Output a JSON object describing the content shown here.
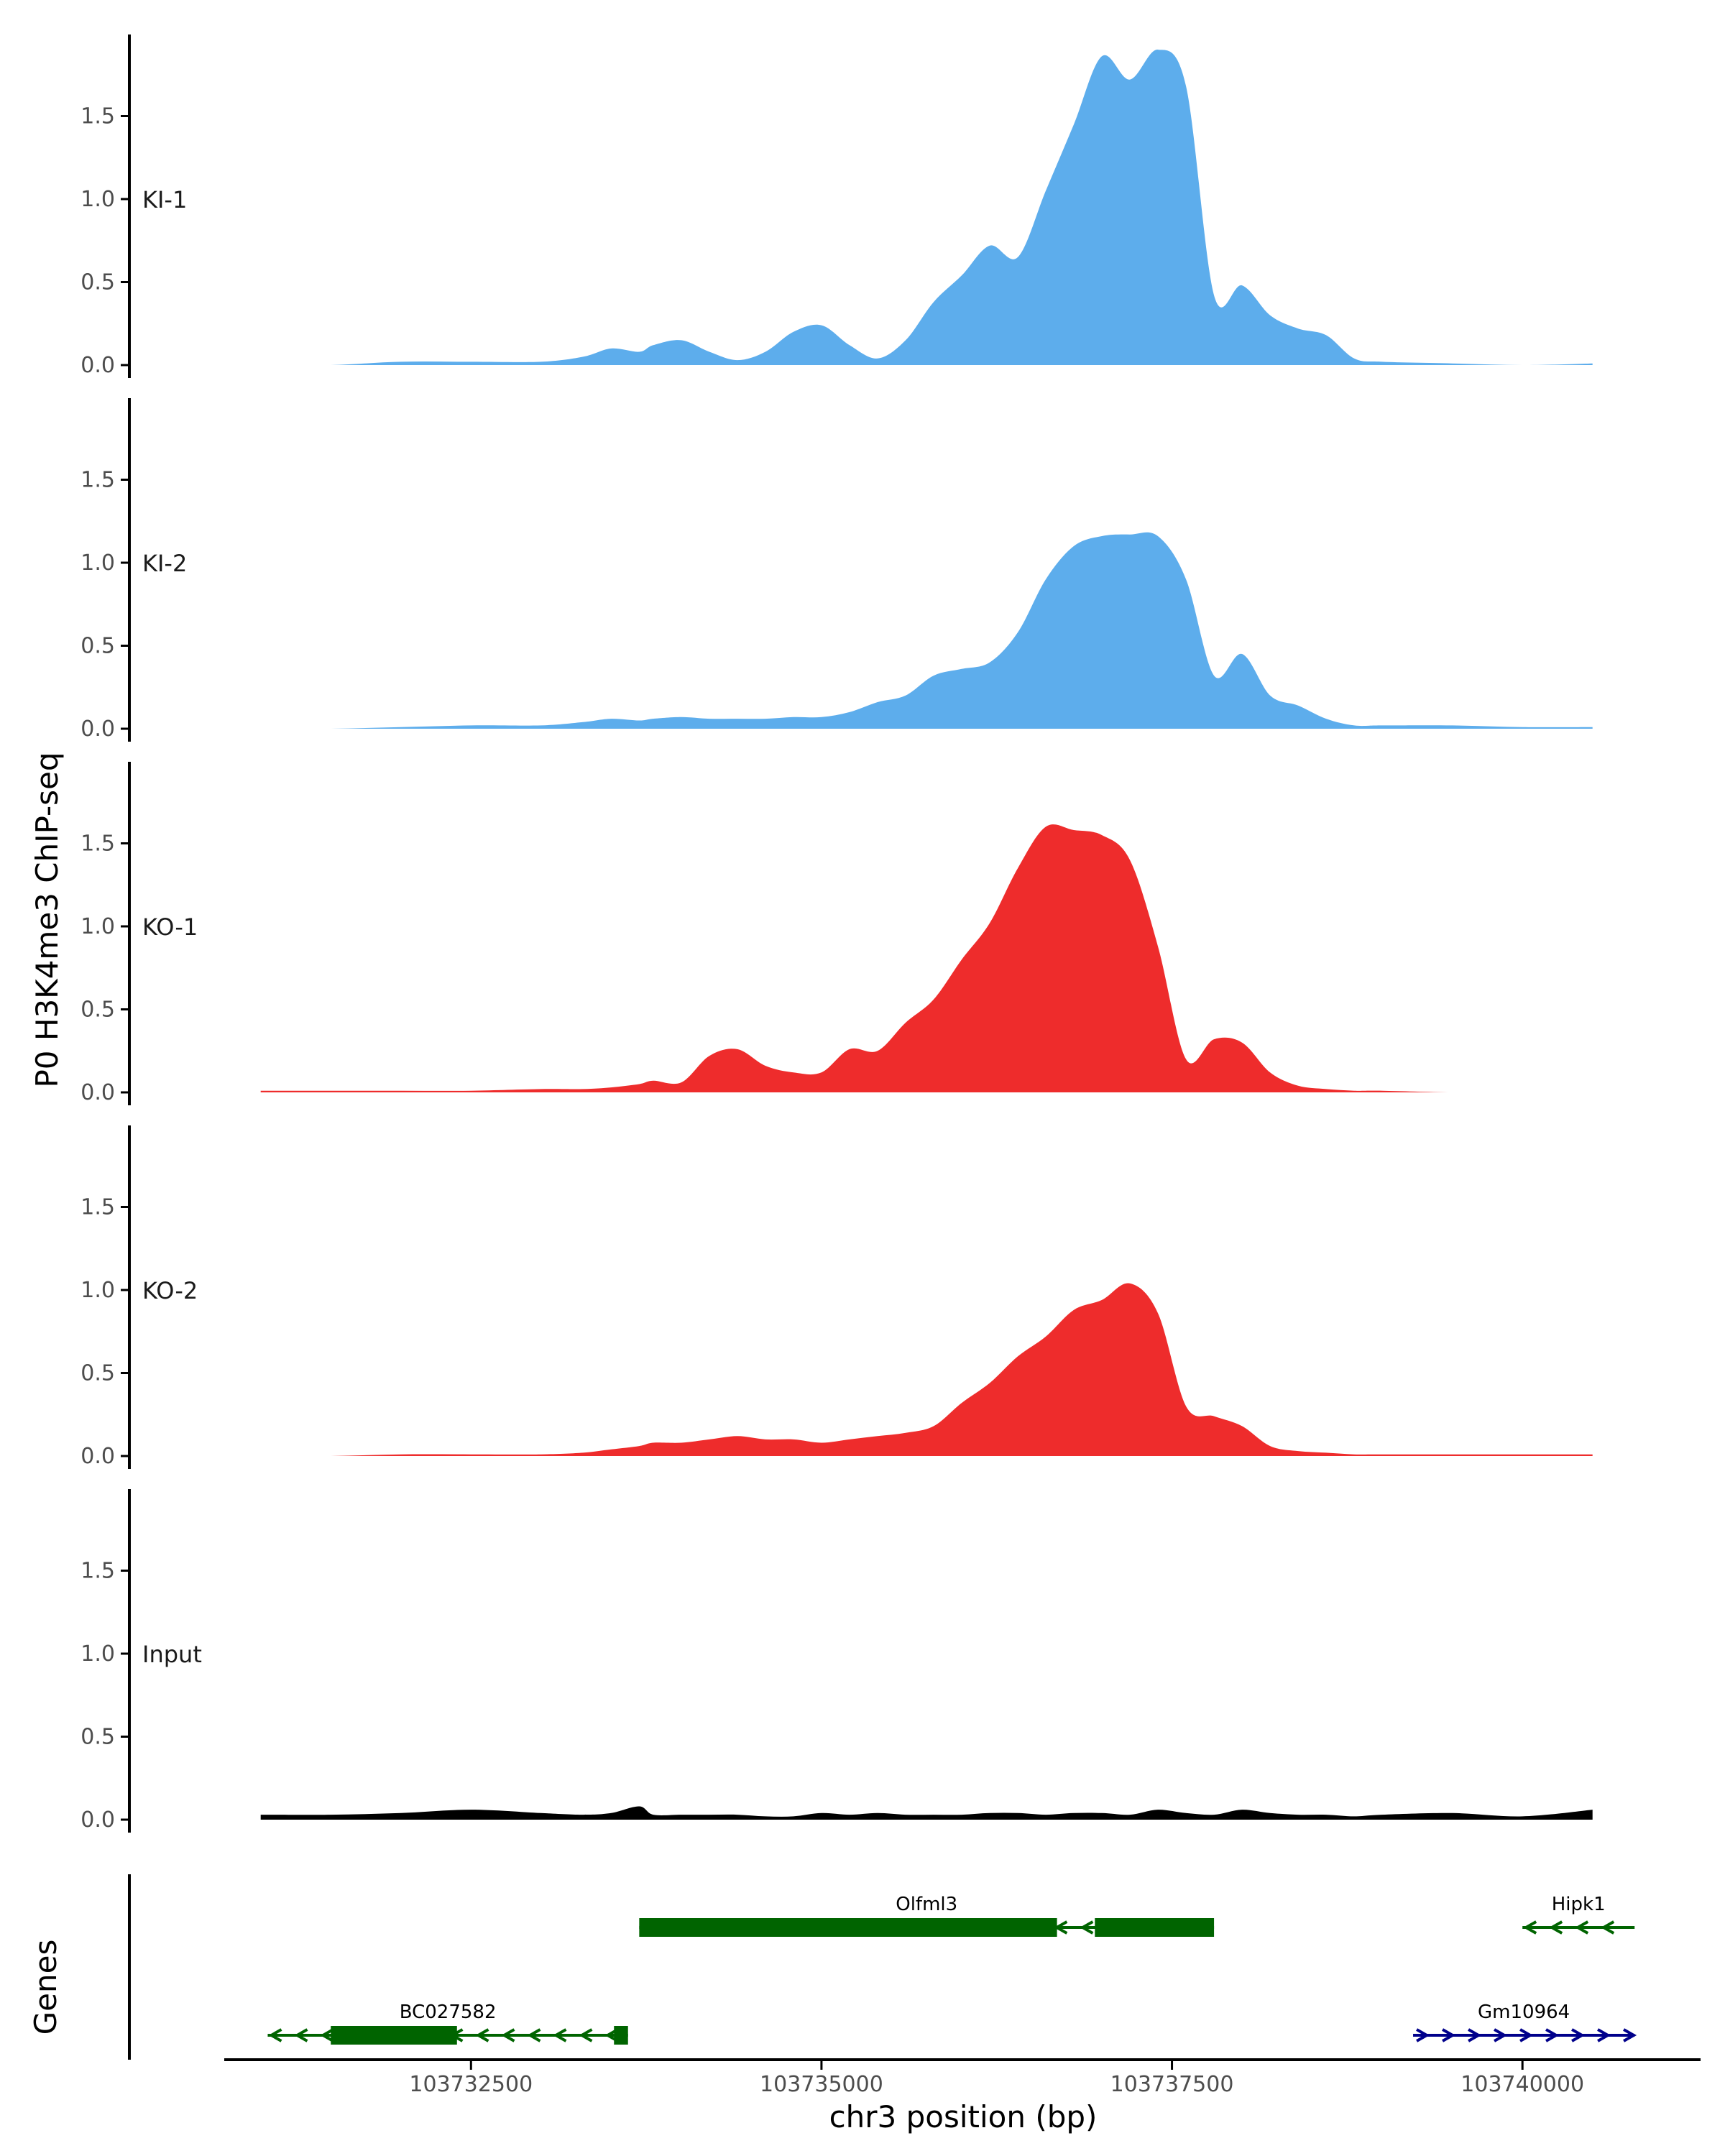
{
  "chart_data": {
    "type": "area",
    "ylabel": "P0 H3K4me3 ChIP-seq",
    "xlabel": "chr3 position (bp)",
    "ylim": [
      0,
      2.0
    ],
    "xlim": [
      103730740,
      103741250
    ],
    "y_ticks": [
      "0.0",
      "0.5",
      "1.0",
      "1.5"
    ],
    "y_tick_values": [
      0,
      0.5,
      1.0,
      1.5
    ],
    "x_ticks": [
      "103732500",
      "103735000",
      "103737500",
      "103740000"
    ],
    "x_tick_values": [
      103732500,
      103735000,
      103737500,
      103740000
    ],
    "colors": {
      "KI": "#5DADEC",
      "KO": "#EE2C2C",
      "Input": "#000000",
      "gene_minus": "#006400",
      "gene_plus": "#00008B",
      "axis": "#000000"
    },
    "track_x": [
      103731000,
      103731500,
      103732000,
      103732500,
      103733000,
      103733300,
      103733500,
      103733700,
      103733800,
      103734000,
      103734200,
      103734400,
      103734600,
      103734800,
      103735000,
      103735200,
      103735400,
      103735600,
      103735800,
      103736000,
      103736200,
      103736400,
      103736600,
      103736800,
      103737000,
      103737200,
      103737400,
      103737600,
      103737800,
      103738000,
      103738200,
      103738400,
      103738600,
      103738800,
      103739000,
      103739500,
      103740000,
      103740500
    ],
    "series": [
      {
        "name": "KI-1",
        "color": "#5DADEC",
        "values": [
          0,
          0,
          0.02,
          0.02,
          0.02,
          0.05,
          0.1,
          0.08,
          0.12,
          0.15,
          0.08,
          0.03,
          0.08,
          0.2,
          0.24,
          0.12,
          0.04,
          0.15,
          0.38,
          0.54,
          0.72,
          0.65,
          1.05,
          1.45,
          1.86,
          1.72,
          1.9,
          1.68,
          0.42,
          0.48,
          0.3,
          0.22,
          0.18,
          0.04,
          0.02,
          0.01,
          0,
          0.01
        ]
      },
      {
        "name": "KI-2",
        "color": "#5DADEC",
        "values": [
          0,
          0,
          0.01,
          0.02,
          0.02,
          0.04,
          0.06,
          0.05,
          0.06,
          0.07,
          0.06,
          0.06,
          0.06,
          0.07,
          0.07,
          0.1,
          0.16,
          0.2,
          0.32,
          0.36,
          0.4,
          0.58,
          0.9,
          1.1,
          1.16,
          1.17,
          1.16,
          0.9,
          0.32,
          0.45,
          0.2,
          0.14,
          0.06,
          0.02,
          0.02,
          0.02,
          0.01,
          0.01
        ]
      },
      {
        "name": "KO-1",
        "color": "#EE2C2C",
        "values": [
          0.01,
          0.01,
          0.01,
          0.01,
          0.02,
          0.02,
          0.03,
          0.05,
          0.07,
          0.06,
          0.22,
          0.26,
          0.16,
          0.12,
          0.12,
          0.26,
          0.25,
          0.42,
          0.56,
          0.8,
          1.02,
          1.35,
          1.6,
          1.58,
          1.55,
          1.4,
          0.88,
          0.2,
          0.32,
          0.3,
          0.12,
          0.04,
          0.02,
          0.01,
          0.01,
          0,
          0,
          0
        ]
      },
      {
        "name": "KO-2",
        "color": "#EE2C2C",
        "values": [
          0,
          0,
          0.01,
          0.01,
          0.01,
          0.02,
          0.04,
          0.06,
          0.08,
          0.08,
          0.1,
          0.12,
          0.1,
          0.1,
          0.08,
          0.1,
          0.12,
          0.14,
          0.18,
          0.32,
          0.44,
          0.6,
          0.72,
          0.88,
          0.94,
          1.04,
          0.86,
          0.3,
          0.24,
          0.18,
          0.06,
          0.03,
          0.02,
          0.01,
          0.01,
          0.01,
          0.01,
          0.01
        ]
      },
      {
        "name": "Input",
        "color": "#000000",
        "values": [
          0.03,
          0.03,
          0.04,
          0.06,
          0.04,
          0.03,
          0.04,
          0.08,
          0.03,
          0.03,
          0.03,
          0.03,
          0.02,
          0.02,
          0.04,
          0.03,
          0.04,
          0.03,
          0.03,
          0.03,
          0.04,
          0.04,
          0.03,
          0.04,
          0.04,
          0.03,
          0.06,
          0.04,
          0.03,
          0.06,
          0.04,
          0.03,
          0.03,
          0.02,
          0.03,
          0.04,
          0.02,
          0.06
        ]
      }
    ],
    "genes_label": "Genes",
    "genes": [
      {
        "name": "Olfml3",
        "strand": "-",
        "color": "#006400",
        "start": 103733700,
        "end": 103737800,
        "exons": [
          [
            103733700,
            103736680
          ],
          [
            103736950,
            103737800
          ]
        ]
      },
      {
        "name": "Hipk1",
        "strand": "-",
        "color": "#006400",
        "start": 103740000,
        "end": 103740800,
        "exons": []
      },
      {
        "name": "BC027582",
        "strand": "-",
        "color": "#006400",
        "start": 103731050,
        "end": 103733620,
        "exons": [
          [
            103731500,
            103732400
          ],
          [
            103733520,
            103733620
          ]
        ]
      },
      {
        "name": "Gm10964",
        "strand": "+",
        "color": "#00008B",
        "start": 103739220,
        "end": 103740800,
        "exons": []
      }
    ]
  }
}
